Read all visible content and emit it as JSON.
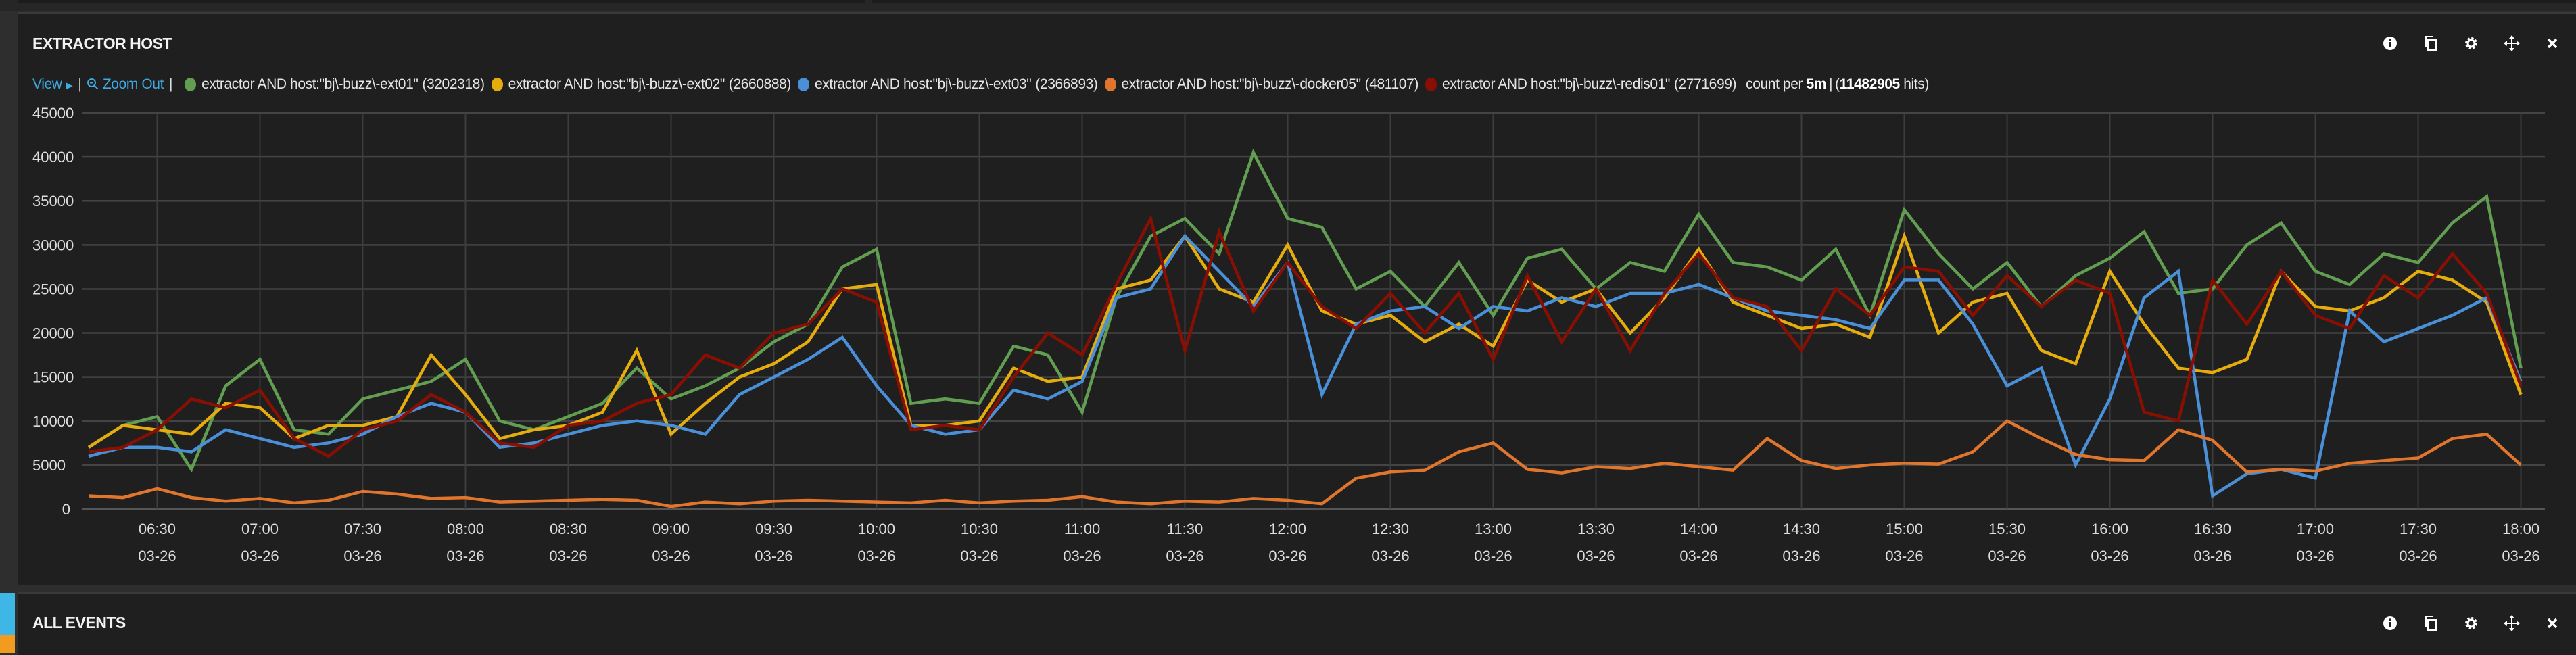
{
  "panel1": {
    "title": "EXTRACTOR HOST",
    "view_label": "View",
    "zoom_out_label": "Zoom Out",
    "count_per_prefix": "count per",
    "interval": "5m",
    "total_hits": "11482905",
    "hits_suffix": "hits)",
    "hits_prefix": "(",
    "icons": [
      "info-icon",
      "duplicate-icon",
      "gear-icon",
      "move-icon",
      "close-icon"
    ]
  },
  "panel2": {
    "title": "ALL EVENTS",
    "icons": [
      "info-icon",
      "duplicate-icon",
      "gear-icon",
      "move-icon",
      "close-icon"
    ]
  },
  "colors": {
    "ext01": "#629e51",
    "ext02": "#e5ac0e",
    "ext03": "#4a90d9",
    "docker05": "#e0752d",
    "redis01": "#890f02",
    "link": "#3fa9e0"
  },
  "chart_data": {
    "type": "line",
    "title": "EXTRACTOR HOST",
    "xlabel": "",
    "ylabel": "",
    "ylim": [
      0,
      45000
    ],
    "yticks": [
      "0",
      "5000",
      "10000",
      "15000",
      "20000",
      "25000",
      "30000",
      "35000",
      "40000",
      "45000"
    ],
    "xrange": [
      "06:08",
      "18:07"
    ],
    "xticks": [
      "06:30",
      "07:00",
      "07:30",
      "08:00",
      "08:30",
      "09:00",
      "09:30",
      "10:00",
      "10:30",
      "11:00",
      "11:30",
      "12:00",
      "12:30",
      "13:00",
      "13:30",
      "14:00",
      "14:30",
      "15:00",
      "15:30",
      "16:00",
      "16:30",
      "17:00",
      "17:30",
      "18:00"
    ],
    "xtick_date": "03-26",
    "grid": true,
    "legend_position": "top-left",
    "x_start": "06:10",
    "x_step_minutes": 10,
    "series": [
      {
        "key": "ext01",
        "name": "extractor AND host:\"bj\\-buzz\\-ext01\"",
        "total": "(3202318)",
        "values": [
          7000,
          9500,
          10500,
          4500,
          14000,
          17000,
          9000,
          8500,
          12500,
          13500,
          14500,
          17000,
          10000,
          9000,
          10500,
          12000,
          16000,
          12500,
          14000,
          16000,
          19000,
          21000,
          27500,
          29500,
          12000,
          12500,
          12000,
          18500,
          17500,
          11000,
          24000,
          31000,
          33000,
          29000,
          40500,
          33000,
          32000,
          25000,
          27000,
          23000,
          28000,
          22000,
          28500,
          29500,
          25000,
          28000,
          27000,
          33500,
          28000,
          27500,
          26000,
          29500,
          22000,
          34000,
          29000,
          25000,
          28000,
          23000,
          26500,
          28500,
          31500,
          24500,
          25000,
          30000,
          32500,
          27000,
          25500,
          29000,
          28000,
          32500,
          35500,
          16000
        ]
      },
      {
        "key": "ext02",
        "name": "extractor AND host:\"bj\\-buzz\\-ext02\"",
        "total": "(2660888)",
        "values": [
          7000,
          9500,
          9000,
          8500,
          12000,
          11500,
          8000,
          9500,
          9500,
          10500,
          17500,
          13000,
          8000,
          9000,
          9500,
          11000,
          18000,
          8500,
          12000,
          15000,
          16500,
          19000,
          25000,
          25500,
          9500,
          9500,
          10000,
          16000,
          14500,
          15000,
          25000,
          26000,
          31000,
          25000,
          23500,
          30000,
          22500,
          21000,
          22000,
          19000,
          21000,
          18500,
          26000,
          23500,
          25000,
          20000,
          24000,
          29500,
          23500,
          22000,
          20500,
          21000,
          19500,
          31000,
          20000,
          23500,
          24500,
          18000,
          16500,
          27000,
          21000,
          16000,
          15500,
          17000,
          27000,
          23000,
          22500,
          24000,
          27000,
          26000,
          23500,
          13000
        ]
      },
      {
        "key": "ext03",
        "name": "extractor AND host:\"bj\\-buzz\\-ext03\"",
        "total": "(2366893)",
        "values": [
          6000,
          7000,
          7000,
          6500,
          9000,
          8000,
          7000,
          7500,
          8500,
          10500,
          12000,
          11000,
          7000,
          7500,
          8500,
          9500,
          10000,
          9500,
          8500,
          13000,
          15000,
          17000,
          19500,
          14000,
          9500,
          8500,
          9000,
          13500,
          12500,
          14500,
          24000,
          25000,
          31000,
          27000,
          23000,
          28000,
          13000,
          21000,
          22500,
          23000,
          20500,
          23000,
          22500,
          24000,
          23000,
          24500,
          24500,
          25500,
          24000,
          22500,
          22000,
          21500,
          20500,
          26000,
          26000,
          21000,
          14000,
          16000,
          5000,
          12500,
          24000,
          27000,
          1500,
          4000,
          4500,
          3500,
          22500,
          19000,
          20500,
          22000,
          24000,
          14500
        ]
      },
      {
        "key": "docker05",
        "name": "extractor AND host:\"bj\\-buzz\\-docker05\"",
        "total": "(481107)",
        "values": [
          1500,
          1300,
          2300,
          1300,
          900,
          1200,
          700,
          1000,
          2000,
          1700,
          1200,
          1300,
          800,
          900,
          1000,
          1100,
          1000,
          300,
          800,
          600,
          900,
          1000,
          900,
          800,
          700,
          1000,
          700,
          900,
          1000,
          1400,
          800,
          600,
          900,
          800,
          1200,
          1000,
          600,
          3500,
          4200,
          4400,
          6500,
          7500,
          4500,
          4100,
          4800,
          4600,
          5200,
          4800,
          4400,
          8000,
          5500,
          4600,
          5000,
          5200,
          5100,
          6500,
          10000,
          8000,
          6200,
          5600,
          5500,
          9000,
          7800,
          4200,
          4500,
          4300,
          5200,
          5500,
          5800,
          8000,
          8500,
          5000
        ]
      },
      {
        "key": "redis01",
        "name": "extractor AND host:\"bj\\-buzz\\-redis01\"",
        "total": "(2771699)",
        "values": [
          6500,
          7000,
          9000,
          12500,
          11500,
          13500,
          8000,
          6000,
          9000,
          10000,
          13000,
          11000,
          7500,
          7000,
          9500,
          10000,
          12000,
          13000,
          17500,
          16000,
          20000,
          21000,
          25000,
          23500,
          9000,
          9500,
          9000,
          15000,
          20000,
          17500,
          25500,
          33000,
          18000,
          31500,
          22500,
          28000,
          23000,
          20500,
          24500,
          20000,
          24500,
          17000,
          26500,
          19000,
          25000,
          18000,
          24500,
          29000,
          24000,
          23000,
          18000,
          25000,
          22000,
          27500,
          27000,
          22000,
          26500,
          23000,
          26000,
          24500,
          11000,
          10000,
          26000,
          21000,
          27000,
          22000,
          20500,
          26500,
          24000,
          29000,
          24500,
          14000
        ]
      }
    ]
  }
}
